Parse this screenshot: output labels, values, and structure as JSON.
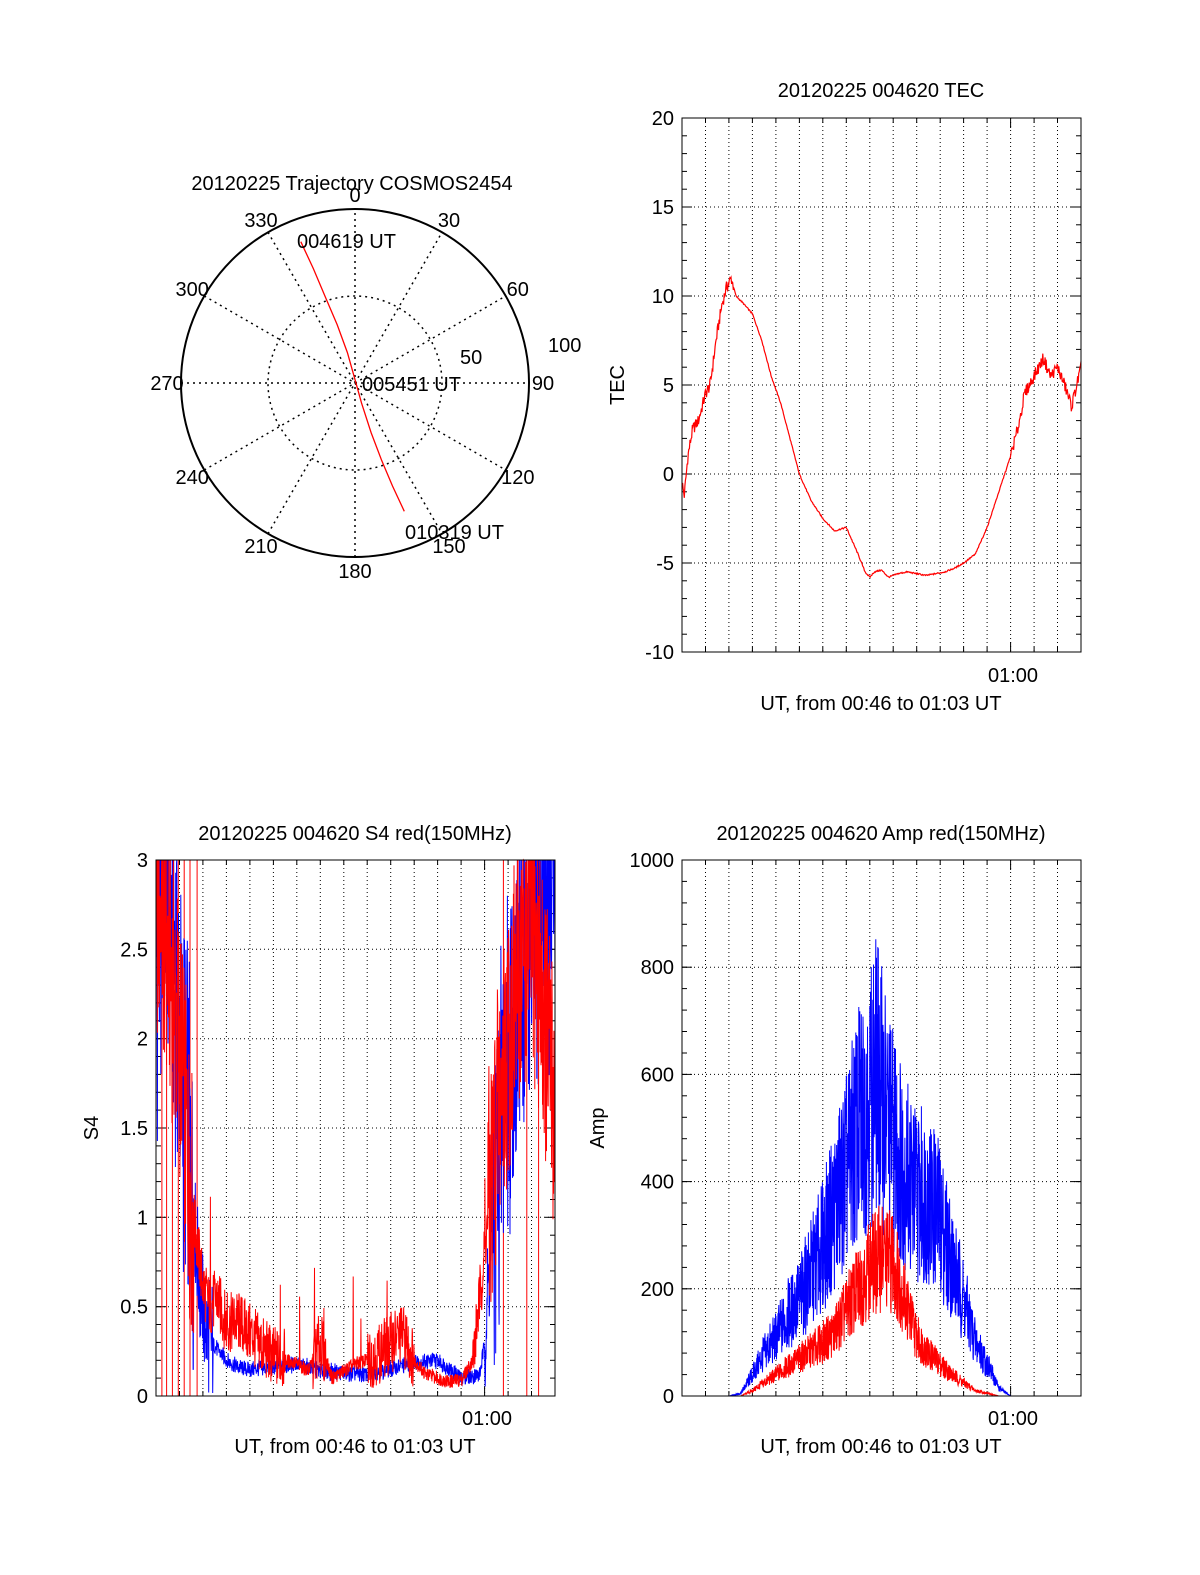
{
  "colors": {
    "red_series": "#ff0000",
    "blue_series": "#0000ff",
    "axes": "#000000",
    "grid": "#000000",
    "background": "#ffffff"
  },
  "chart_data": [
    {
      "type": "scatter",
      "title": "20120225 Trajectory COSMOS2454",
      "angle_labels": [
        "0",
        "30",
        "60",
        "90",
        "120",
        "150",
        "180",
        "210",
        "240",
        "270",
        "300",
        "330"
      ],
      "ring_labels": [
        "50",
        "100"
      ],
      "radius_max": 100,
      "grid": true,
      "trajectory": {
        "start_label": "004619 UT",
        "mid_label": "005451 UT",
        "end_label": "010319 UT",
        "points": [
          {
            "azimuth": 339,
            "radius": 87
          },
          {
            "azimuth": 340,
            "radius": 70
          },
          {
            "azimuth": 341,
            "radius": 52
          },
          {
            "azimuth": 343,
            "radius": 35
          },
          {
            "azimuth": 346,
            "radius": 18
          },
          {
            "azimuth": 355,
            "radius": 3
          },
          {
            "azimuth": 162,
            "radius": 12
          },
          {
            "azimuth": 162,
            "radius": 30
          },
          {
            "azimuth": 161,
            "radius": 47
          },
          {
            "azimuth": 160,
            "radius": 63
          },
          {
            "azimuth": 159,
            "radius": 79
          }
        ]
      }
    },
    {
      "type": "line",
      "title": "20120225 004620 TEC",
      "xlabel": "UT, from 00:46 to 01:03 UT",
      "ylabel": "TEC",
      "x_tick_label": "01:00",
      "x_range_min": [
        0,
        17
      ],
      "ylim": [
        -10,
        20
      ],
      "yticks": [
        -10,
        -5,
        0,
        5,
        10,
        15,
        20
      ],
      "grid": true,
      "series": [
        {
          "x": [
            0.0,
            0.1,
            0.25,
            0.45,
            0.7,
            1.0,
            1.2,
            1.45,
            1.7,
            1.9,
            2.1,
            2.3,
            2.6,
            3.0,
            3.4,
            3.8,
            4.2,
            4.6,
            5.0,
            5.5,
            6.0,
            6.5,
            7.0,
            7.5,
            7.8,
            8.0,
            8.2,
            8.5,
            8.8,
            9.2,
            9.6,
            10.0,
            10.4,
            10.8,
            11.2,
            11.6,
            12.0,
            12.5,
            13.0,
            13.5,
            14.0,
            14.3,
            14.6,
            15.0,
            15.4,
            15.7,
            16.0,
            16.3,
            16.6,
            17.0
          ],
          "y": [
            -0.5,
            -1.2,
            1.0,
            2.5,
            3.0,
            4.5,
            5.0,
            7.5,
            9.5,
            10.5,
            11.0,
            10.0,
            9.6,
            9.0,
            7.5,
            5.5,
            4.0,
            2.0,
            0.0,
            -1.5,
            -2.5,
            -3.2,
            -3.0,
            -4.5,
            -5.5,
            -5.8,
            -5.5,
            -5.4,
            -5.8,
            -5.6,
            -5.5,
            -5.6,
            -5.7,
            -5.6,
            -5.5,
            -5.3,
            -5.0,
            -4.5,
            -3.0,
            -1.0,
            1.0,
            2.5,
            4.5,
            5.5,
            6.5,
            5.5,
            6.0,
            5.0,
            3.8,
            6.0
          ]
        }
      ]
    },
    {
      "type": "line",
      "title": "20120225 004620 S4 red(150MHz)",
      "xlabel": "UT, from 00:46 to 01:03 UT",
      "ylabel": "S4",
      "x_tick_label": "01:00",
      "x_range_min": [
        0,
        17
      ],
      "ylim": [
        0,
        3
      ],
      "yticks": [
        0,
        0.5,
        1,
        1.5,
        2,
        2.5,
        3
      ],
      "grid": true,
      "series": [
        {
          "name": "",
          "color": "blue",
          "x": [
            0.0,
            0.3,
            0.6,
            0.9,
            1.2,
            1.5,
            1.8,
            2.1,
            2.5,
            3.0,
            3.5,
            4.0,
            5.0,
            6.0,
            7.0,
            8.0,
            9.0,
            10.0,
            11.0,
            12.0,
            13.0,
            13.8,
            14.0,
            14.3,
            14.6,
            15.0,
            15.5,
            16.0,
            16.5,
            17.0
          ],
          "y": [
            2.4,
            3.0,
            2.7,
            2.3,
            1.7,
            1.2,
            0.7,
            0.4,
            0.28,
            0.2,
            0.16,
            0.15,
            0.16,
            0.18,
            0.14,
            0.13,
            0.12,
            0.15,
            0.19,
            0.2,
            0.1,
            0.12,
            0.3,
            0.9,
            1.4,
            1.9,
            2.3,
            2.6,
            2.8,
            2.9
          ]
        },
        {
          "name": "",
          "color": "red",
          "x": [
            0.0,
            0.5,
            1.0,
            1.5,
            2.0,
            2.3,
            2.6,
            3.0,
            3.5,
            4.0,
            4.5,
            5.0,
            5.5,
            6.0,
            6.5,
            7.0,
            7.5,
            8.0,
            8.5,
            9.0,
            9.5,
            10.0,
            10.5,
            11.0,
            11.5,
            12.0,
            12.5,
            13.0,
            13.5,
            14.0,
            14.5,
            15.0,
            15.5,
            16.0,
            16.5,
            17.0
          ],
          "y": [
            2.8,
            2.5,
            2.0,
            1.1,
            0.62,
            0.5,
            0.55,
            0.4,
            0.42,
            0.35,
            0.28,
            0.22,
            0.2,
            0.18,
            0.14,
            0.3,
            0.1,
            0.14,
            0.18,
            0.2,
            0.24,
            0.3,
            0.35,
            0.2,
            0.12,
            0.1,
            0.08,
            0.09,
            0.2,
            0.8,
            1.5,
            2.0,
            2.4,
            2.6,
            2.2,
            1.6
          ]
        }
      ]
    },
    {
      "type": "line",
      "title": "20120225 004620 Amp red(150MHz)",
      "xlabel": "UT, from 00:46 to 01:03 UT",
      "ylabel": "Amp",
      "x_tick_label": "01:00",
      "x_range_min": [
        0,
        17
      ],
      "ylim": [
        0,
        1000
      ],
      "yticks": [
        0,
        200,
        400,
        600,
        800,
        1000
      ],
      "grid": true,
      "series": [
        {
          "name": "",
          "color": "blue",
          "x": [
            0.0,
            1.0,
            2.0,
            2.5,
            3.0,
            3.5,
            4.0,
            4.5,
            5.0,
            5.5,
            6.0,
            6.5,
            7.0,
            7.5,
            8.0,
            8.3,
            8.6,
            9.0,
            9.5,
            10.0,
            10.5,
            11.0,
            11.5,
            12.0,
            12.5,
            13.0,
            13.5,
            14.0,
            15.0,
            17.0
          ],
          "y": [
            0,
            0,
            0,
            5,
            40,
            80,
            110,
            150,
            180,
            230,
            280,
            350,
            420,
            500,
            560,
            600,
            540,
            480,
            420,
            380,
            370,
            330,
            250,
            180,
            100,
            60,
            15,
            0,
            0,
            0
          ]
        },
        {
          "name": "",
          "color": "red",
          "x": [
            0.0,
            2.5,
            3.0,
            3.5,
            4.0,
            4.5,
            5.0,
            5.5,
            6.0,
            6.5,
            7.0,
            7.5,
            8.0,
            8.5,
            9.0,
            9.5,
            10.0,
            10.5,
            11.0,
            11.5,
            12.0,
            12.5,
            13.0,
            13.5,
            17.0
          ],
          "y": [
            0,
            0,
            10,
            25,
            40,
            55,
            70,
            85,
            100,
            120,
            160,
            200,
            240,
            260,
            250,
            180,
            110,
            80,
            60,
            40,
            25,
            10,
            5,
            0,
            0
          ]
        }
      ]
    }
  ]
}
